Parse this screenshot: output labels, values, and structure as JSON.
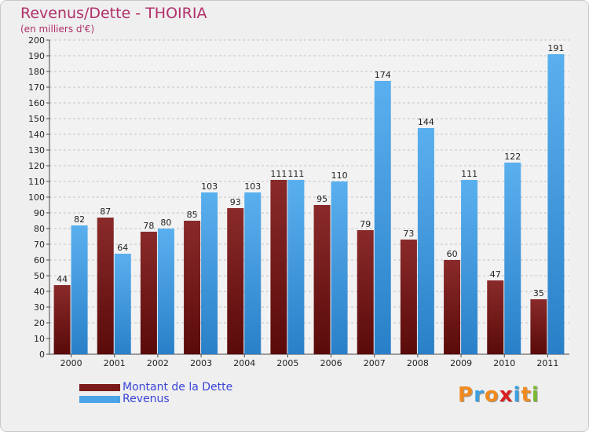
{
  "chart_data": {
    "type": "bar",
    "title": "Revenus/Dette - THOIRIA",
    "subtitle": "(en milliers d'€)",
    "categories": [
      "2000",
      "2001",
      "2002",
      "2003",
      "2004",
      "2005",
      "2006",
      "2007",
      "2008",
      "2009",
      "2010",
      "2011"
    ],
    "series": [
      {
        "name": "Montant de la Dette",
        "color": "#7a1a1a",
        "values": [
          44,
          87,
          78,
          85,
          93,
          111,
          95,
          79,
          73,
          60,
          47,
          35
        ]
      },
      {
        "name": "Revenus",
        "color": "#4aa3e6",
        "values": [
          82,
          64,
          80,
          103,
          103,
          111,
          110,
          174,
          144,
          111,
          122,
          191
        ]
      }
    ],
    "ylim": [
      0,
      200
    ],
    "yticks": [
      0,
      10,
      20,
      30,
      40,
      50,
      60,
      70,
      80,
      90,
      100,
      110,
      120,
      130,
      140,
      150,
      160,
      170,
      180,
      190,
      200
    ],
    "grid": "horizontal dashed",
    "legend": "bottom-left"
  },
  "logo": {
    "letters": [
      "P",
      "r",
      "o",
      "x",
      "i",
      "t",
      "i"
    ],
    "colors": [
      "#f08a1e",
      "#3aa0e0",
      "#f08a1e",
      "#d82020",
      "#3aa0e0",
      "#f08a1e",
      "#7ab832"
    ]
  }
}
